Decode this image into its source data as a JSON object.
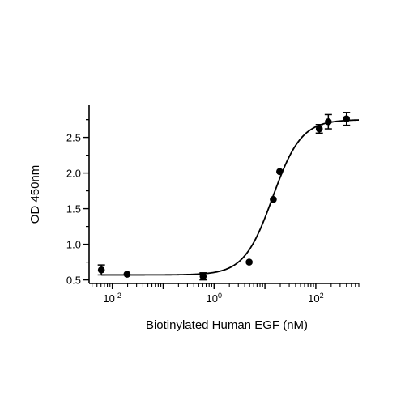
{
  "chart_data": {
    "type": "scatter",
    "xlabel": "Biotinylated Human EGF (nM)",
    "ylabel": "OD 450nm",
    "x_scale": "log10",
    "xlim": [
      0.0035,
      700
    ],
    "ylim": [
      0.45,
      2.95
    ],
    "grid": false,
    "y_ticks": [
      {
        "value": 0.5,
        "label": "0.5"
      },
      {
        "value": 1.0,
        "label": "1.0"
      },
      {
        "value": 1.5,
        "label": "1.5"
      },
      {
        "value": 2.0,
        "label": "2.0"
      },
      {
        "value": 2.5,
        "label": "2.5"
      }
    ],
    "x_ticks": [
      {
        "value": 0.01,
        "label_base": "10",
        "label_exp": "-2"
      },
      {
        "value": 1,
        "label_base": "10",
        "label_exp": "0"
      },
      {
        "value": 100,
        "label_base": "10",
        "label_exp": "2"
      }
    ],
    "series": [
      {
        "points": [
          {
            "x": 0.0061,
            "y": 0.64,
            "err": 0.07
          },
          {
            "x": 0.0195,
            "y": 0.58,
            "err": 0.0
          },
          {
            "x": 0.61,
            "y": 0.55,
            "err": 0.05
          },
          {
            "x": 4.9,
            "y": 0.75,
            "err": 0.0
          },
          {
            "x": 14.6,
            "y": 1.63,
            "err": 0.0
          },
          {
            "x": 19.5,
            "y": 2.02,
            "err": 0.0
          },
          {
            "x": 117,
            "y": 2.62,
            "err": 0.06
          },
          {
            "x": 176,
            "y": 2.72,
            "err": 0.1
          },
          {
            "x": 400,
            "y": 2.76,
            "err": 0.09
          }
        ]
      }
    ],
    "fit": {
      "type": "4PL",
      "bottom": 0.57,
      "top": 2.75,
      "ec50": 14.2,
      "hill": 1.55
    }
  }
}
